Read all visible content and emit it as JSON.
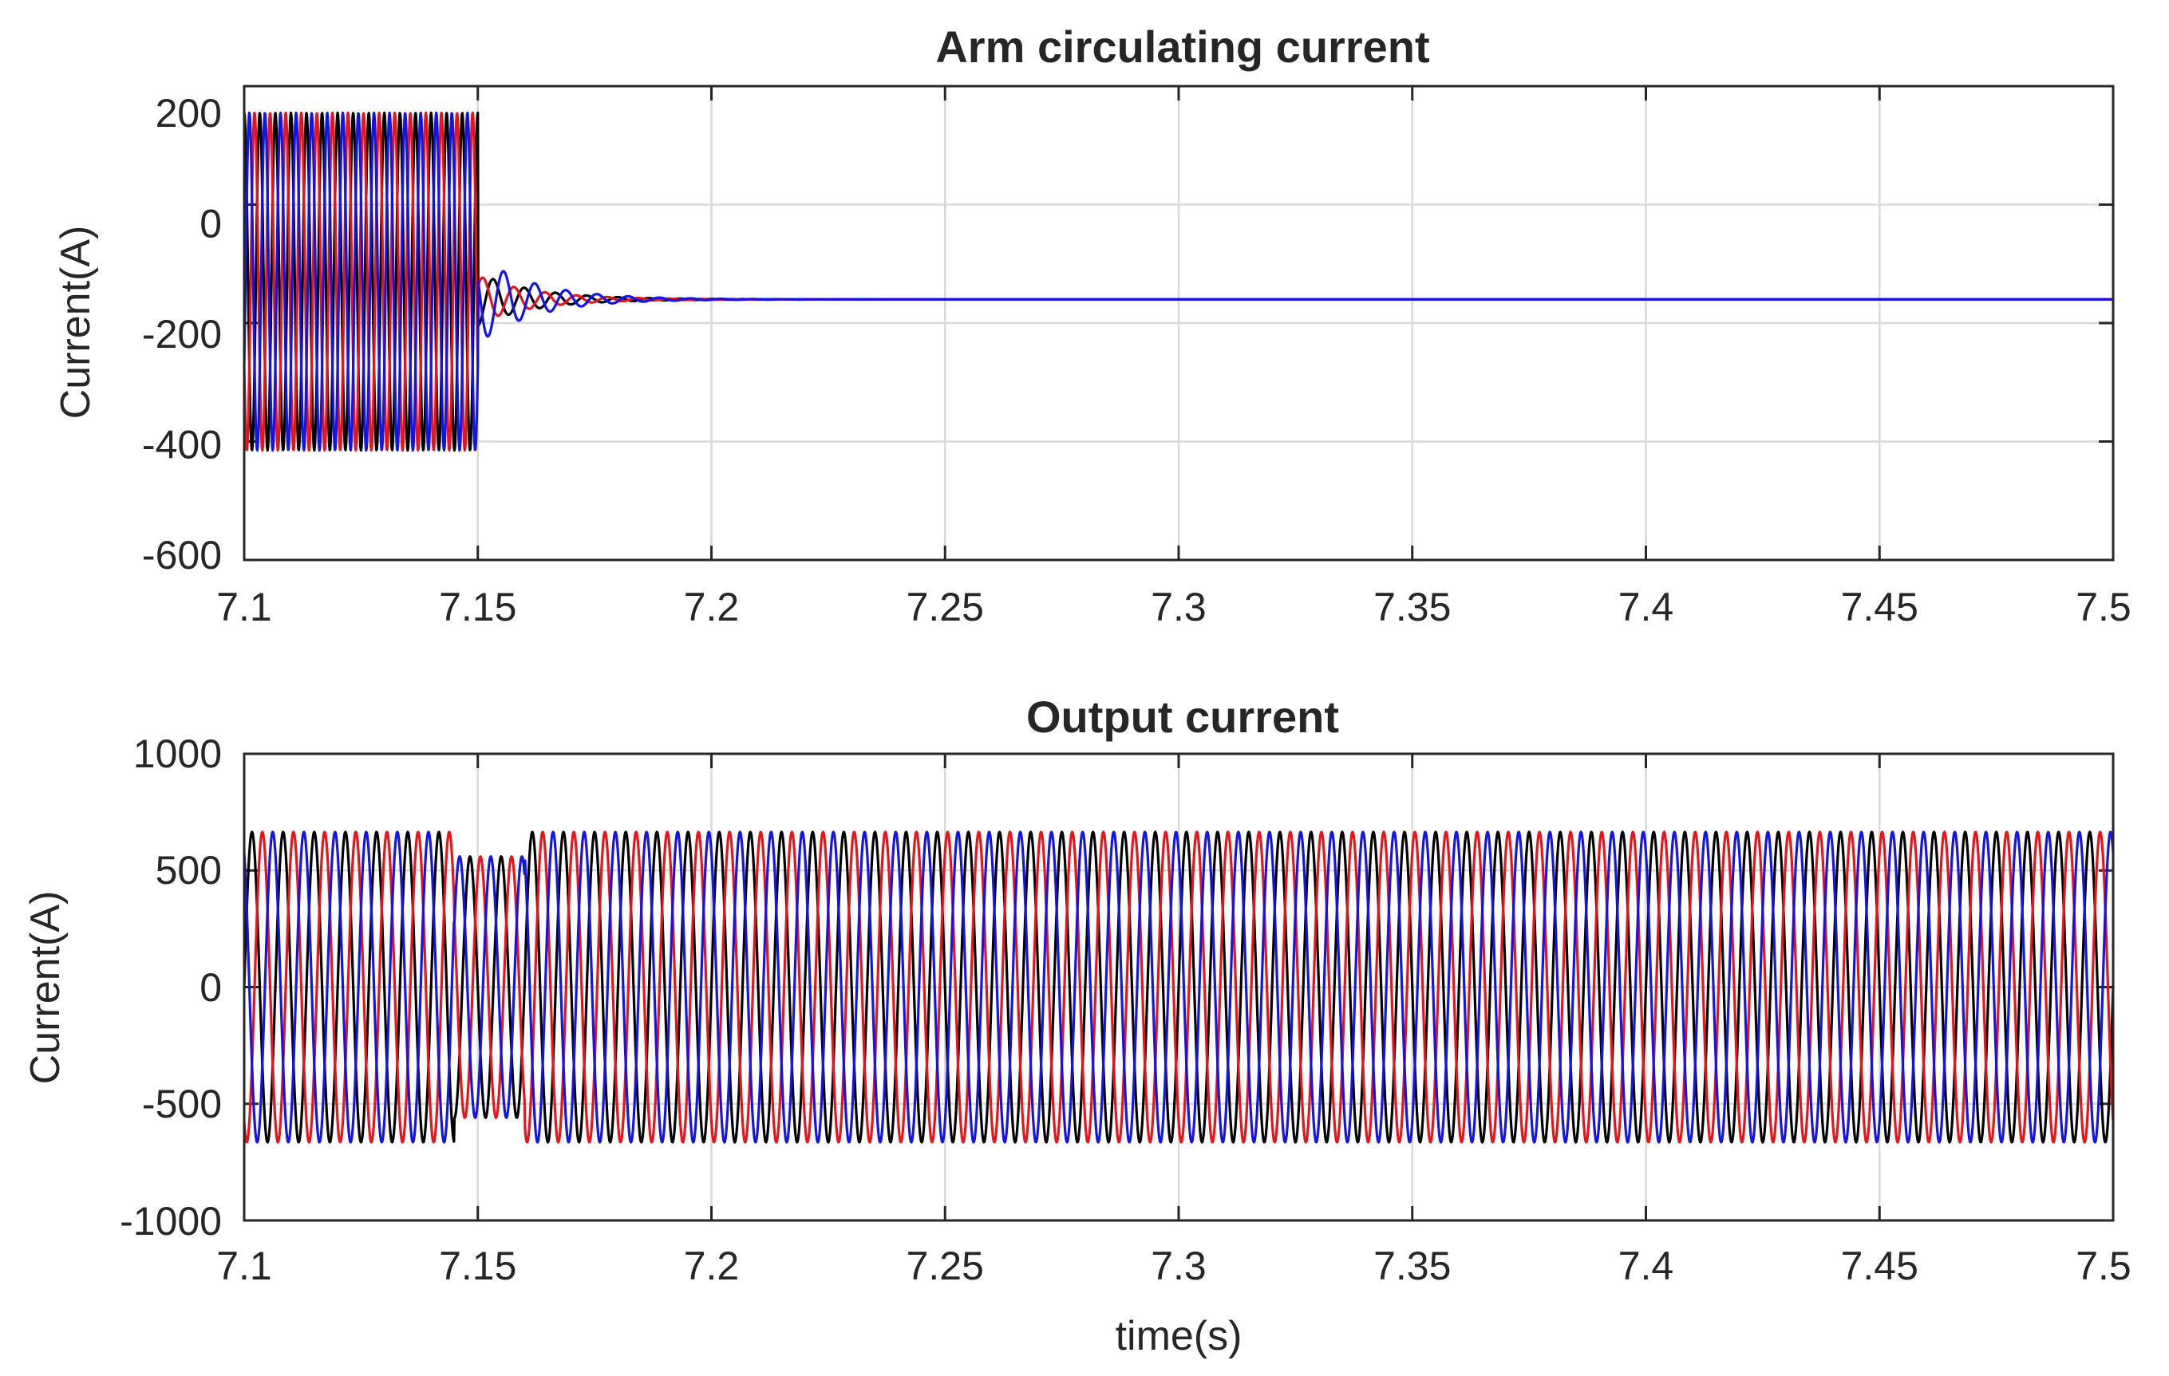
{
  "colors": {
    "phase_a": "#000000",
    "phase_b": "#e8141a",
    "phase_c": "#1414e6"
  },
  "chart_data": [
    {
      "type": "line",
      "title": "Arm circulating current",
      "xlabel": "",
      "ylabel": "Current(A)",
      "xlim": [
        7.1,
        7.5
      ],
      "ylim": [
        -600,
        200
      ],
      "x_ticks": [
        "7.1",
        "7.15",
        "7.2",
        "7.25",
        "7.3",
        "7.35",
        "7.4",
        "7.45",
        "7.5"
      ],
      "y_ticks": [
        "200",
        "0",
        "-200",
        "-400",
        "-600"
      ],
      "grid": true,
      "series": [
        {
          "color": "#000000",
          "phase_deg": 90,
          "segments": [
            {
              "t_start": 7.1,
              "t_end": 7.15,
              "freq_hz": 300,
              "dc_offset": -130,
              "amplitude": 285
            },
            {
              "t_start": 7.15,
              "t_end": 7.5,
              "freq_hz": 150,
              "dc_offset": -160,
              "amplitude": 45,
              "decay_s": 0.012
            }
          ]
        },
        {
          "color": "#e8141a",
          "phase_deg": 210,
          "segments": [
            {
              "t_start": 7.1,
              "t_end": 7.15,
              "freq_hz": 300,
              "dc_offset": -130,
              "amplitude": 285
            },
            {
              "t_start": 7.15,
              "t_end": 7.5,
              "freq_hz": 150,
              "dc_offset": -160,
              "amplitude": 40,
              "decay_s": 0.012
            }
          ]
        },
        {
          "color": "#1414e6",
          "phase_deg": 330,
          "segments": [
            {
              "t_start": 7.1,
              "t_end": 7.15,
              "freq_hz": 300,
              "dc_offset": -130,
              "amplitude": 285
            },
            {
              "t_start": 7.15,
              "t_end": 7.5,
              "freq_hz": 150,
              "dc_offset": -160,
              "amplitude": 75,
              "decay_s": 0.012
            }
          ]
        }
      ]
    },
    {
      "type": "line",
      "title": "Output current",
      "xlabel": "time(s)",
      "ylabel": "Current(A)",
      "xlim": [
        7.1,
        7.5
      ],
      "ylim": [
        -1000,
        1000
      ],
      "x_ticks": [
        "7.1",
        "7.15",
        "7.2",
        "7.25",
        "7.3",
        "7.35",
        "7.4",
        "7.45",
        "7.5"
      ],
      "y_ticks": [
        "1000",
        "500",
        "0",
        "-500",
        "-1000"
      ],
      "grid": true,
      "series": [
        {
          "color": "#000000",
          "phase_deg": 0,
          "freq_hz": 150,
          "amplitude": 665,
          "dip_amplitude": 560,
          "dip_window": [
            7.145,
            7.16
          ]
        },
        {
          "color": "#e8141a",
          "phase_deg": -120,
          "freq_hz": 150,
          "amplitude": 665,
          "dip_amplitude": 560,
          "dip_window": [
            7.145,
            7.16
          ]
        },
        {
          "color": "#1414e6",
          "phase_deg": 120,
          "freq_hz": 150,
          "amplitude": 665,
          "dip_amplitude": 560,
          "dip_window": [
            7.145,
            7.16
          ]
        }
      ]
    }
  ]
}
